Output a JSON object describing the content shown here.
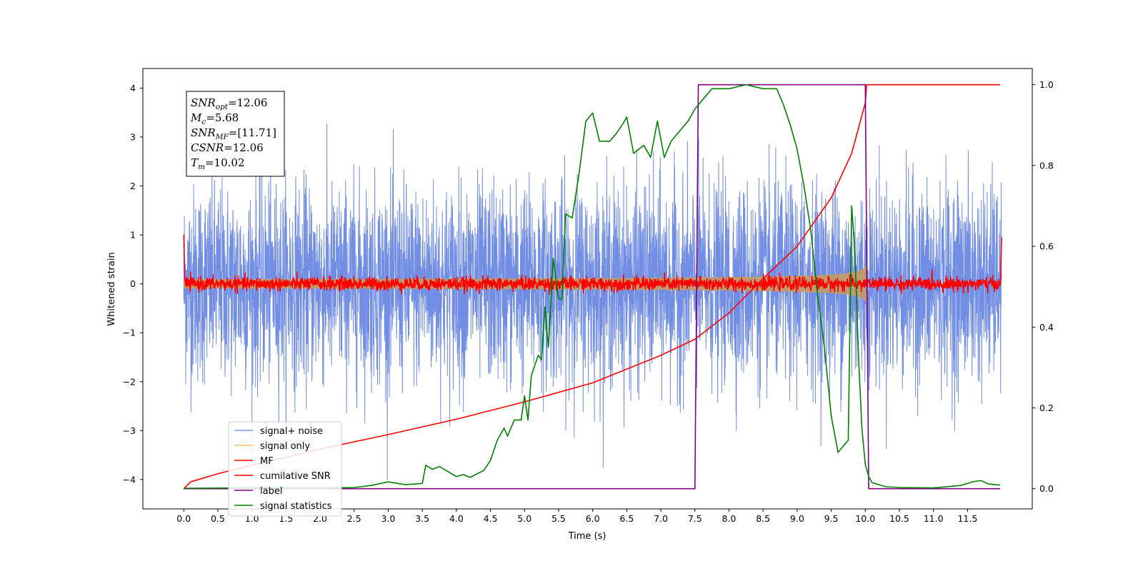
{
  "chart_data": {
    "type": "line",
    "title": "",
    "xlabel": "Time (s)",
    "ylabel": "Whitened strain",
    "xlim": [
      -0.6,
      12.45
    ],
    "ylim_left": [
      -4.6,
      4.4
    ],
    "ylim_right": [
      -0.05,
      1.04
    ],
    "x_ticks": [
      "0.0",
      "0.5",
      "1.0",
      "1.5",
      "2.0",
      "2.5",
      "3.0",
      "3.5",
      "4.0",
      "4.5",
      "5.0",
      "5.5",
      "6.0",
      "6.5",
      "7.0",
      "7.5",
      "8.0",
      "8.5",
      "9.0",
      "9.5",
      "10.0",
      "10.5",
      "11.0",
      "11.5"
    ],
    "y_ticks_left": [
      "4",
      "3",
      "2",
      "1",
      "0",
      "−1",
      "−2",
      "−3",
      "−4"
    ],
    "y_ticks_right": [
      "1.0",
      "0.8",
      "0.6",
      "0.4",
      "0.2",
      "0.0"
    ],
    "grid": false,
    "legend_position": "lower-left",
    "annotation": {
      "lines": [
        {
          "main": "SNR",
          "sub": "opt",
          "value": "=12.06"
        },
        {
          "main": "M",
          "sub": "c",
          "value": "=5.68"
        },
        {
          "main": "SNR",
          "sub": "MF",
          "value": "=[11.71]"
        },
        {
          "main": "CSNR",
          "sub": "",
          "value": "=12.06"
        },
        {
          "main": "T",
          "sub": "m",
          "value": "=10.02"
        }
      ]
    },
    "series": [
      {
        "name": "signal+ noise",
        "color": "#6a88e3",
        "axis": "left",
        "style": "noise",
        "x_range": [
          0.0,
          12.0
        ],
        "noise_std": 1.0,
        "peak_abs": 4.0
      },
      {
        "name": "signal only",
        "color": "#f7c46c",
        "axis": "left",
        "style": "chirp",
        "x_range": [
          0.0,
          10.02
        ],
        "amplitude_end": 1.05
      },
      {
        "name": "MF",
        "color": "#ff0000",
        "axis": "left",
        "style": "mf",
        "x_range": [
          0.0,
          12.0
        ],
        "noise_std": 0.07
      },
      {
        "name": "cumilative SNR",
        "color": "#ff0000",
        "axis": "right",
        "points": [
          [
            0.0,
            0.0
          ],
          [
            0.1,
            0.017
          ],
          [
            0.5,
            0.037
          ],
          [
            1.0,
            0.058
          ],
          [
            2.0,
            0.098
          ],
          [
            3.0,
            0.134
          ],
          [
            4.0,
            0.172
          ],
          [
            5.0,
            0.215
          ],
          [
            6.0,
            0.262
          ],
          [
            7.0,
            0.33
          ],
          [
            7.5,
            0.37
          ],
          [
            8.0,
            0.435
          ],
          [
            8.5,
            0.52
          ],
          [
            9.0,
            0.6
          ],
          [
            9.5,
            0.72
          ],
          [
            9.8,
            0.83
          ],
          [
            10.0,
            0.955
          ],
          [
            10.02,
            1.0
          ],
          [
            11.98,
            1.0
          ]
        ]
      },
      {
        "name": "label",
        "color": "#800080",
        "axis": "right",
        "points": [
          [
            0.0,
            0.0
          ],
          [
            7.5,
            0.0
          ],
          [
            7.55,
            1.0
          ],
          [
            10.0,
            1.0
          ],
          [
            10.05,
            0.0
          ],
          [
            11.98,
            0.0
          ]
        ]
      },
      {
        "name": "signal statistics",
        "color": "#008000",
        "axis": "right",
        "points": [
          [
            0.0,
            0.001
          ],
          [
            1.0,
            0.002
          ],
          [
            2.0,
            0.002
          ],
          [
            2.5,
            0.003
          ],
          [
            2.75,
            0.008
          ],
          [
            3.0,
            0.017
          ],
          [
            3.25,
            0.01
          ],
          [
            3.5,
            0.013
          ],
          [
            3.55,
            0.058
          ],
          [
            3.65,
            0.048
          ],
          [
            3.75,
            0.055
          ],
          [
            3.85,
            0.045
          ],
          [
            4.0,
            0.03
          ],
          [
            4.1,
            0.035
          ],
          [
            4.2,
            0.028
          ],
          [
            4.4,
            0.045
          ],
          [
            4.5,
            0.07
          ],
          [
            4.6,
            0.12
          ],
          [
            4.7,
            0.15
          ],
          [
            4.75,
            0.13
          ],
          [
            4.85,
            0.17
          ],
          [
            4.95,
            0.17
          ],
          [
            5.0,
            0.23
          ],
          [
            5.05,
            0.17
          ],
          [
            5.1,
            0.28
          ],
          [
            5.2,
            0.33
          ],
          [
            5.25,
            0.32
          ],
          [
            5.3,
            0.45
          ],
          [
            5.35,
            0.35
          ],
          [
            5.42,
            0.57
          ],
          [
            5.5,
            0.47
          ],
          [
            5.55,
            0.47
          ],
          [
            5.6,
            0.68
          ],
          [
            5.7,
            0.67
          ],
          [
            5.8,
            0.78
          ],
          [
            5.9,
            0.91
          ],
          [
            6.0,
            0.93
          ],
          [
            6.1,
            0.86
          ],
          [
            6.25,
            0.86
          ],
          [
            6.35,
            0.88
          ],
          [
            6.45,
            0.905
          ],
          [
            6.5,
            0.92
          ],
          [
            6.6,
            0.83
          ],
          [
            6.75,
            0.85
          ],
          [
            6.85,
            0.82
          ],
          [
            6.95,
            0.91
          ],
          [
            7.05,
            0.82
          ],
          [
            7.15,
            0.86
          ],
          [
            7.3,
            0.89
          ],
          [
            7.4,
            0.91
          ],
          [
            7.5,
            0.94
          ],
          [
            7.6,
            0.96
          ],
          [
            7.75,
            0.99
          ],
          [
            8.0,
            0.99
          ],
          [
            8.25,
            1.0
          ],
          [
            8.5,
            0.99
          ],
          [
            8.7,
            0.99
          ],
          [
            8.8,
            0.95
          ],
          [
            8.9,
            0.9
          ],
          [
            9.0,
            0.84
          ],
          [
            9.1,
            0.75
          ],
          [
            9.2,
            0.64
          ],
          [
            9.3,
            0.48
          ],
          [
            9.4,
            0.35
          ],
          [
            9.5,
            0.18
          ],
          [
            9.6,
            0.09
          ],
          [
            9.75,
            0.12
          ],
          [
            9.8,
            0.7
          ],
          [
            9.85,
            0.58
          ],
          [
            9.9,
            0.33
          ],
          [
            9.95,
            0.15
          ],
          [
            10.0,
            0.06
          ],
          [
            10.05,
            0.03
          ],
          [
            10.1,
            0.015
          ],
          [
            10.3,
            0.005
          ],
          [
            10.5,
            0.003
          ],
          [
            11.0,
            0.002
          ],
          [
            11.4,
            0.008
          ],
          [
            11.6,
            0.018
          ],
          [
            11.7,
            0.02
          ],
          [
            11.8,
            0.012
          ],
          [
            11.9,
            0.01
          ],
          [
            11.98,
            0.009
          ]
        ]
      }
    ]
  }
}
